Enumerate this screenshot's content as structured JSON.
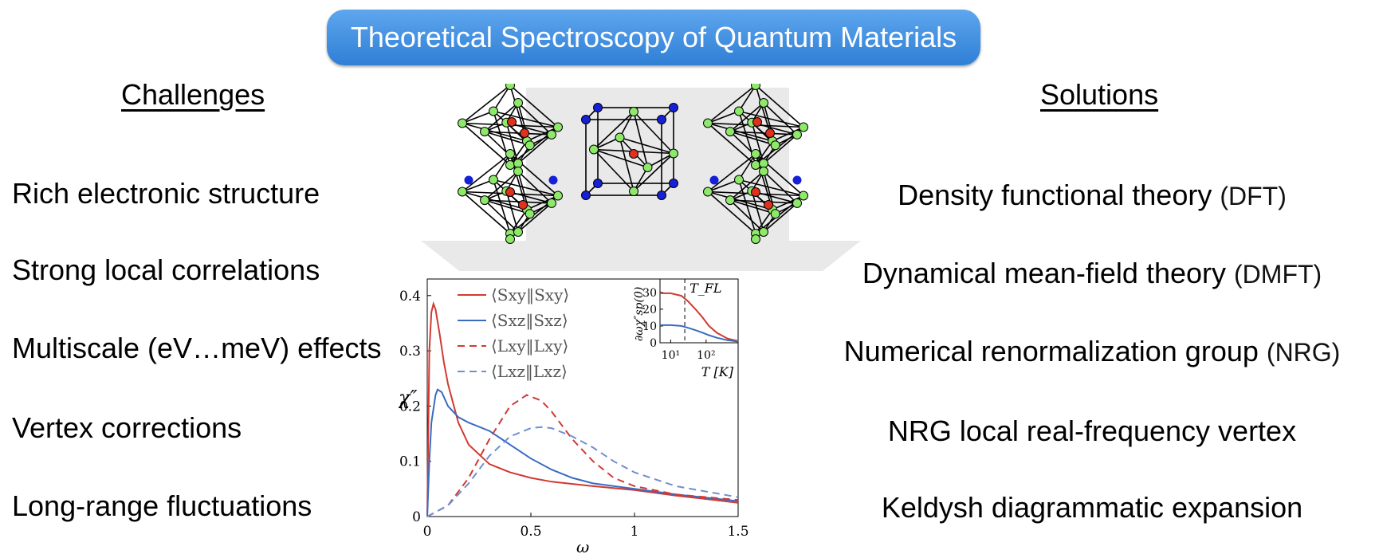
{
  "banner": {
    "title": "Theoretical Spectroscopy of Quantum Materials"
  },
  "left": {
    "heading": "Challenges",
    "items": [
      "Rich electronic structure",
      "Strong local correlations",
      "Multiscale (eV…meV) effects",
      "Vertex corrections",
      "Long-range fluctuations"
    ]
  },
  "right": {
    "heading": "Solutions",
    "items": [
      {
        "text": "Density functional theory",
        "abbr": "(DFT)"
      },
      {
        "text": "Dynamical mean-field theory",
        "abbr": "(DMFT)"
      },
      {
        "text": "Numerical renormalization group",
        "abbr": "(NRG)"
      },
      {
        "text": "NRG local real-frequency vertex",
        "abbr": ""
      },
      {
        "text": "Keldysh diagrammatic expansion",
        "abbr": ""
      }
    ]
  },
  "colors": {
    "banner": "#3b8ae0",
    "red": "#d03a32",
    "blue": "#3a6bc0",
    "atom_green": "#8ee86a",
    "atom_red": "#e0301e",
    "atom_blue": "#1520d8"
  },
  "chart_data": [
    {
      "type": "line",
      "xlabel": "ω",
      "ylabel": "χ″",
      "xlim": [
        0,
        1.5
      ],
      "ylim": [
        0,
        0.43
      ],
      "xticks": [
        "0",
        "0.5",
        "1",
        "1.5"
      ],
      "yticks": [
        "0",
        "0.1",
        "0.2",
        "0.3",
        "0.4"
      ],
      "legend_position": "top-left",
      "series": [
        {
          "name": "⟨Sxy‖Sxy⟩",
          "style": "solid",
          "color": "#d03a32",
          "x": [
            0,
            0.005,
            0.01,
            0.02,
            0.03,
            0.04,
            0.06,
            0.08,
            0.1,
            0.15,
            0.2,
            0.3,
            0.4,
            0.5,
            0.6,
            0.8,
            1.0,
            1.2,
            1.5
          ],
          "y": [
            0,
            0.15,
            0.3,
            0.37,
            0.385,
            0.375,
            0.33,
            0.28,
            0.24,
            0.17,
            0.13,
            0.095,
            0.08,
            0.07,
            0.063,
            0.055,
            0.048,
            0.038,
            0.025
          ]
        },
        {
          "name": "⟨Sxz‖Sxz⟩",
          "style": "solid",
          "color": "#3a6bc0",
          "x": [
            0,
            0.01,
            0.02,
            0.04,
            0.05,
            0.07,
            0.1,
            0.15,
            0.2,
            0.3,
            0.4,
            0.5,
            0.6,
            0.7,
            0.8,
            1.0,
            1.2,
            1.5
          ],
          "y": [
            0,
            0.1,
            0.17,
            0.22,
            0.23,
            0.225,
            0.2,
            0.18,
            0.17,
            0.155,
            0.13,
            0.105,
            0.085,
            0.07,
            0.06,
            0.05,
            0.04,
            0.028
          ]
        },
        {
          "name": "⟨Lxy‖Lxy⟩",
          "style": "dashed",
          "color": "#d03a32",
          "x": [
            0,
            0.1,
            0.2,
            0.3,
            0.4,
            0.48,
            0.55,
            0.6,
            0.7,
            0.8,
            0.9,
            1.0,
            1.2,
            1.5
          ],
          "y": [
            0,
            0.02,
            0.07,
            0.14,
            0.2,
            0.22,
            0.21,
            0.19,
            0.14,
            0.1,
            0.07,
            0.055,
            0.04,
            0.03
          ]
        },
        {
          "name": "⟨Lxz‖Lxz⟩",
          "style": "dashed",
          "color": "#6f8fd0",
          "x": [
            0,
            0.1,
            0.2,
            0.3,
            0.4,
            0.5,
            0.55,
            0.6,
            0.7,
            0.8,
            0.9,
            1.0,
            1.2,
            1.5
          ],
          "y": [
            0,
            0.02,
            0.06,
            0.11,
            0.145,
            0.16,
            0.162,
            0.16,
            0.145,
            0.125,
            0.1,
            0.08,
            0.055,
            0.035
          ]
        }
      ]
    },
    {
      "type": "line",
      "inset": true,
      "title": "T_FL",
      "xlabel": "T [K]",
      "ylabel": "∂ωχ″sp(0)",
      "xscale": "log",
      "xlim": [
        5,
        800
      ],
      "ylim": [
        0,
        38
      ],
      "xticks": [
        "10¹",
        "10²"
      ],
      "yticks": [
        "0",
        "10",
        "20",
        "30"
      ],
      "marker_line_x": 25,
      "series": [
        {
          "color": "#d03a32",
          "x": [
            5,
            10,
            20,
            30,
            50,
            80,
            120,
            200,
            400,
            800
          ],
          "y": [
            29.5,
            29.5,
            28,
            25,
            20,
            15,
            10,
            6,
            2.5,
            1
          ]
        },
        {
          "color": "#3a6bc0",
          "x": [
            5,
            10,
            20,
            30,
            50,
            80,
            120,
            200,
            400,
            800
          ],
          "y": [
            10.5,
            10.5,
            10,
            9,
            7.5,
            6,
            4.5,
            3,
            1.5,
            0.7
          ]
        }
      ]
    }
  ]
}
